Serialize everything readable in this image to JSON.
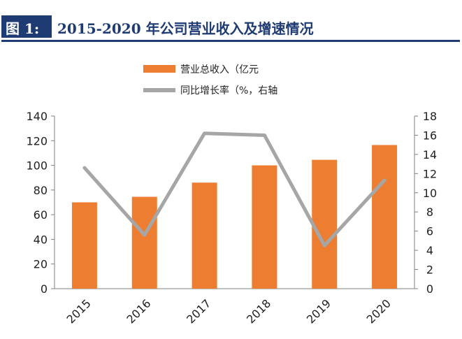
{
  "figure": {
    "label": "图 1:",
    "title": "2015-2020 年公司营业收入及增速情况"
  },
  "colors": {
    "label_bg": "#1f3b73",
    "title_text": "#1f3b73",
    "rule": "#1f3b73",
    "bar": "#ed7d31",
    "line": "#a6a6a6",
    "axis": "#7f7f7f",
    "text": "#222222"
  },
  "chart_data": {
    "type": "bar",
    "categories": [
      "2015",
      "2016",
      "2017",
      "2018",
      "2019",
      "2020"
    ],
    "series": [
      {
        "name": "营业总收入（亿元",
        "kind": "bar",
        "axis": "left",
        "values": [
          70,
          74.5,
          86,
          100,
          104.5,
          116.5
        ]
      },
      {
        "name": "同比增长率（%，右轴",
        "kind": "line",
        "axis": "right",
        "values": [
          12.6,
          5.6,
          16.2,
          16.0,
          4.5,
          11.3
        ]
      }
    ],
    "y_left": {
      "min": 0,
      "max": 140,
      "ticks": [
        0,
        20,
        40,
        60,
        80,
        100,
        120,
        140
      ]
    },
    "y_right": {
      "min": 0,
      "max": 18,
      "ticks": [
        0,
        2,
        4,
        6,
        8,
        10,
        12,
        14,
        16,
        18
      ]
    },
    "grid": false,
    "legend_position": "top-center",
    "x_tick_rotation": "-45"
  }
}
